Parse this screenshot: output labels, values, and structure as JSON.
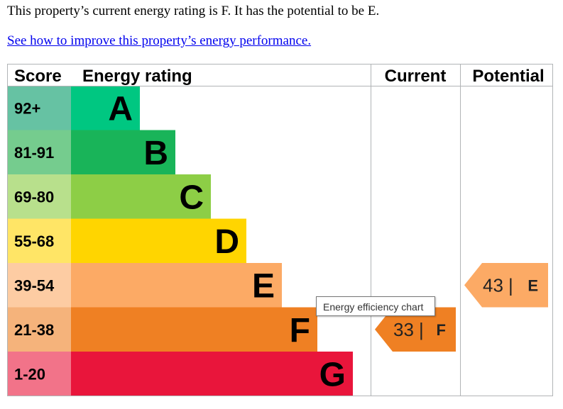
{
  "intro_text": "This property’s current energy rating is F. It has the potential to be E.",
  "improve_link": "See how to improve this property’s energy performance.",
  "tooltip": "Energy efficiency chart",
  "chart_data": {
    "type": "table",
    "headers": {
      "score": "Score",
      "rating": "Energy rating",
      "current": "Current",
      "potential": "Potential"
    },
    "bands": [
      {
        "score": "92+",
        "letter": "A",
        "color": "#008054",
        "score_color": "#66c2a3",
        "bar_color": "#00c781"
      },
      {
        "score": "81-91",
        "letter": "B",
        "color": "#19b459",
        "score_color": "#75cc8e",
        "bar_color": "#19b459"
      },
      {
        "score": "69-80",
        "letter": "C",
        "color": "#8dce46",
        "score_color": "#b8e08c",
        "bar_color": "#8dce46"
      },
      {
        "score": "55-68",
        "letter": "D",
        "color": "#ffd500",
        "score_color": "#ffe566",
        "bar_color": "#ffd500"
      },
      {
        "score": "39-54",
        "letter": "E",
        "color": "#fcaa65",
        "score_color": "#fdcca3",
        "bar_color": "#fcaa65"
      },
      {
        "score": "21-38",
        "letter": "F",
        "color": "#ef8023",
        "score_color": "#f5b37b",
        "bar_color": "#ef8023"
      },
      {
        "score": "1-20",
        "letter": "G",
        "color": "#e9153b",
        "score_color": "#f27389",
        "bar_color": "#e9153b"
      }
    ],
    "current": {
      "value": 33,
      "letter": "F",
      "color": "#ef8023"
    },
    "potential": {
      "value": 43,
      "letter": "E",
      "color": "#fcaa65"
    }
  }
}
